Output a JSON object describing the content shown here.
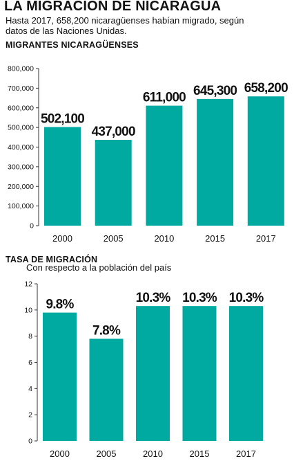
{
  "header": {
    "title": "LA MIGRACIÓN DE NICARAGUA",
    "subtitle": "Hasta 2017, 658,200 nicaragüenses habían migrado, según datos de las Naciones Unidas."
  },
  "colors": {
    "bar": "#00aaa0",
    "axis": "#333333",
    "text": "#111111"
  },
  "chart_data": [
    {
      "type": "bar",
      "title": "MIGRANTES NICARAGÜENSES",
      "subtitle": "",
      "xlabel": "",
      "ylabel": "",
      "categories": [
        "2000",
        "2005",
        "2010",
        "2015",
        "2017"
      ],
      "values": [
        502100,
        437000,
        611000,
        645300,
        658200
      ],
      "value_labels": [
        "502,100",
        "437,000",
        "611,000",
        "645,300",
        "658,200"
      ],
      "ylim": [
        0,
        800000
      ],
      "yticks": [
        0,
        100000,
        200000,
        300000,
        400000,
        500000,
        600000,
        700000,
        800000
      ],
      "ytick_labels": [
        "0",
        "100,000",
        "200,000",
        "300,000",
        "400,000",
        "500,000",
        "600,000",
        "700,000",
        "800,000"
      ],
      "grid": false,
      "legend": "none"
    },
    {
      "type": "bar",
      "title": "TASA DE MIGRACIÓN",
      "subtitle": "Con respecto a la población del país",
      "xlabel": "",
      "ylabel": "",
      "categories": [
        "2000",
        "2005",
        "2010",
        "2015",
        "2017"
      ],
      "values": [
        9.8,
        7.8,
        10.3,
        10.3,
        10.3
      ],
      "value_labels": [
        "9.8%",
        "7.8%",
        "10.3%",
        "10.3%",
        "10.3%"
      ],
      "ylim": [
        0,
        12
      ],
      "yticks": [
        0,
        2,
        4,
        6,
        8,
        10,
        12
      ],
      "ytick_labels": [
        "0",
        "2",
        "4",
        "6",
        "8",
        "10",
        "12"
      ],
      "grid": false,
      "legend": "none"
    }
  ]
}
